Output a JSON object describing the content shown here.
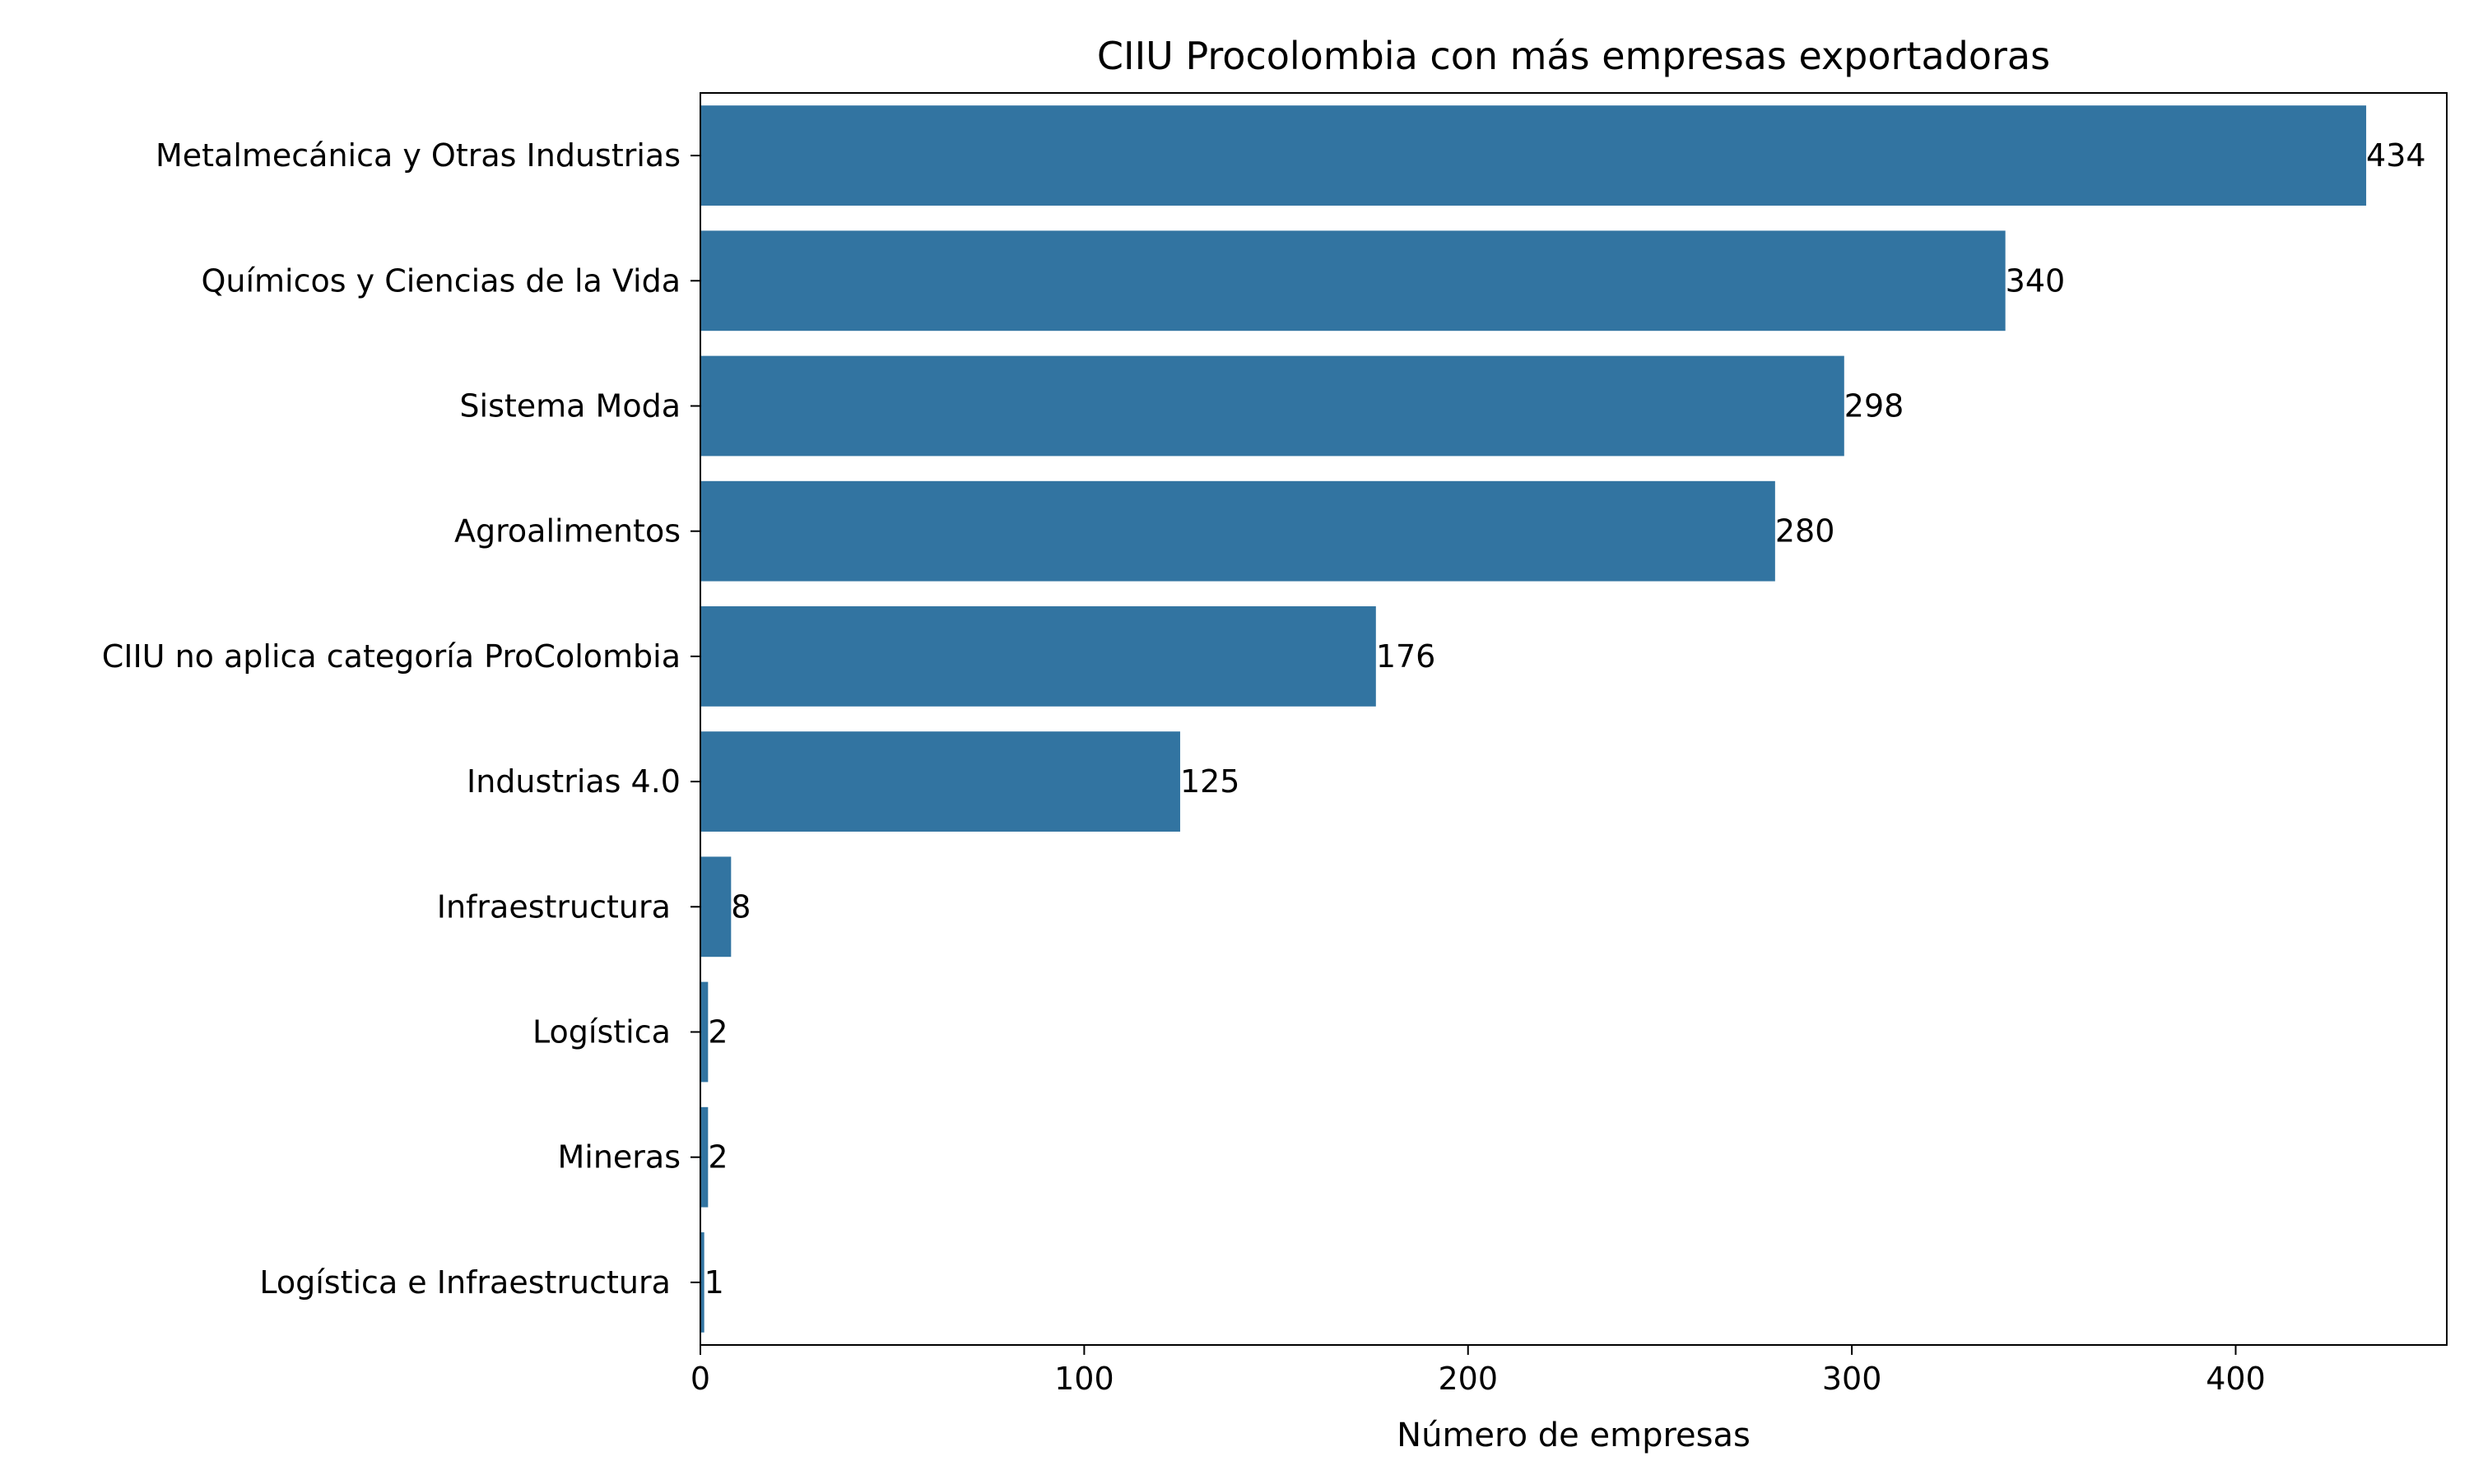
{
  "chart_data": {
    "type": "bar",
    "orientation": "horizontal",
    "title": "CIIU Procolombia con más empresas exportadoras",
    "xlabel": "Número de empresas",
    "ylabel": "",
    "categories": [
      "Metalmecánica y Otras Industrias",
      "Químicos y Ciencias de la Vida",
      "Sistema Moda",
      "Agroalimentos",
      "CIIU no aplica categoría ProColombia",
      "Industrias 4.0",
      "Infraestructura ",
      "Logística ",
      "Mineras",
      "Logística e Infraestructura "
    ],
    "values": [
      434,
      340,
      298,
      280,
      176,
      125,
      8,
      2,
      2,
      1
    ],
    "xlim": [
      0,
      455
    ],
    "xticks": [
      0,
      100,
      200,
      300,
      400
    ],
    "grid": false,
    "legend": "none",
    "bar_color": "#3274a1"
  }
}
